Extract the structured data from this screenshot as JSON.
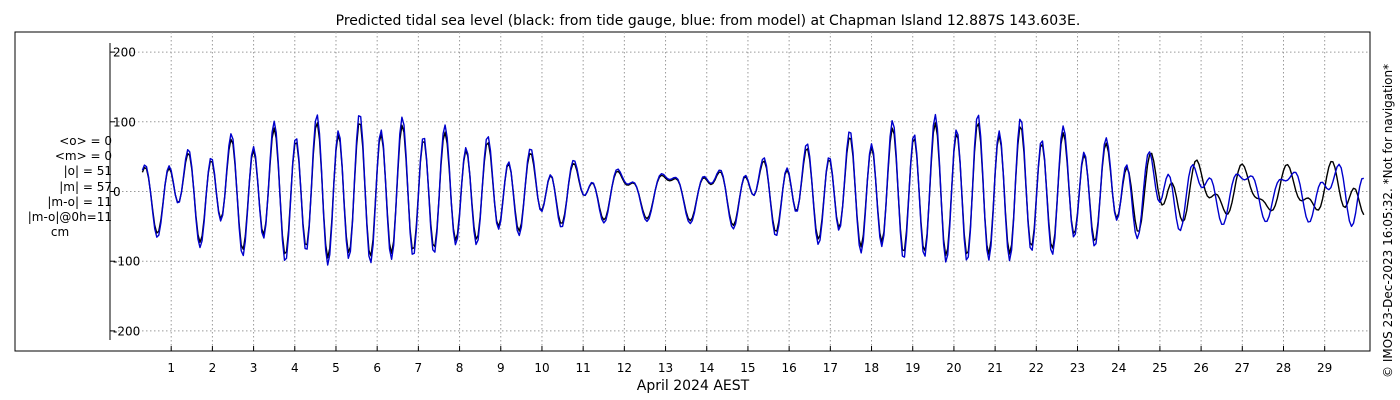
{
  "colors": {
    "observed": "#000000",
    "model": "#0000cc",
    "grid": "#9a9a9a",
    "axis": "#000000"
  },
  "stats": {
    "lines": [
      "<o> = 0",
      "<m> = 0",
      "|o| = 51",
      "|m| = 57",
      "|m-o| = 11",
      "|m-o|@0h=11"
    ],
    "unit": "cm"
  },
  "copyright": "© IMOS 23-Dec-2023 16:05:32. *Not for navigation*",
  "chart_data": {
    "type": "line",
    "title": "Predicted tidal sea level (black: from tide gauge, blue: from model) at Chapman Island 12.887S 143.603E.",
    "xlabel": "April 2024 AEST",
    "ylabel": "",
    "xlim": [
      0,
      30.1
    ],
    "ylim": [
      -225,
      225
    ],
    "yticks": [
      -200,
      -100,
      0,
      100,
      200
    ],
    "xticks": [
      1,
      2,
      3,
      4,
      5,
      6,
      7,
      8,
      9,
      10,
      11,
      12,
      13,
      14,
      15,
      16,
      17,
      18,
      19,
      20,
      21,
      22,
      23,
      24,
      25,
      26,
      27,
      28,
      29
    ],
    "grid": true,
    "x_start": 0.3,
    "x_end": 29.98,
    "x_step": 0.05,
    "series": [
      {
        "key": "observed",
        "label": "from tide gauge",
        "color": "#000000",
        "tide_model": {
          "semidiurnal": {
            "amp": 52,
            "amp_mod": 40,
            "mod_period": 14.76,
            "mod_phase": 5.5,
            "period": 0.5175,
            "phase": 0.4,
            "ramp_from": 24,
            "ramp_to": 30,
            "ramp_phase": 0.35
          },
          "diurnal": {
            "amp": 18,
            "amp_mod": 10,
            "mod_period": 13.66,
            "mod_phase": 13.5,
            "period": 1.0758,
            "phase": 0.15
          }
        }
      },
      {
        "key": "model",
        "label": "from model",
        "color": "#0000cc",
        "tide_model": {
          "semidiurnal": {
            "amp": 57,
            "amp_mod": 44,
            "mod_period": 14.76,
            "mod_phase": 5.5,
            "period": 0.5175,
            "phase": 0.4,
            "ramp_from": 0,
            "ramp_to": 0,
            "ramp_phase": 0
          },
          "diurnal": {
            "amp": 21,
            "amp_mod": 10,
            "mod_period": 13.66,
            "mod_phase": 13.5,
            "period": 1.0758,
            "phase": 0.15
          }
        }
      }
    ]
  }
}
